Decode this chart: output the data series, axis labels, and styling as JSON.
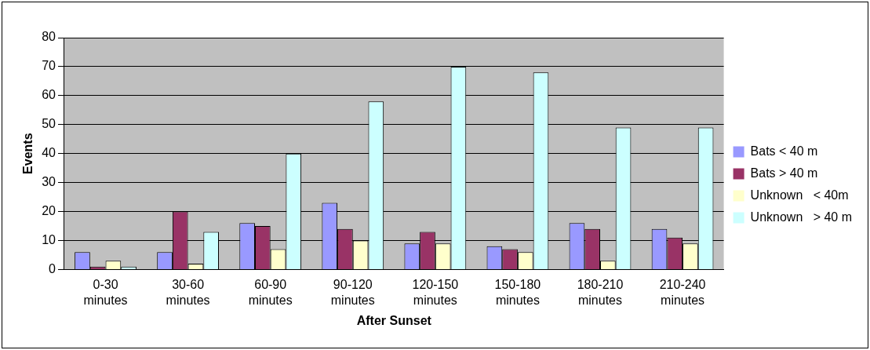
{
  "chart_data": {
    "type": "bar",
    "xlabel": "After Sunset",
    "ylabel": "Events",
    "categories": [
      "0-30 minutes",
      "30-60 minutes",
      "60-90 minutes",
      "90-120 minutes",
      "120-150 minutes",
      "150-180 minutes",
      "180-210 minutes",
      "210-240 minutes"
    ],
    "series": [
      {
        "name": "Bats < 40 m",
        "color": "#9999ff",
        "values": [
          6,
          6,
          16,
          23,
          9,
          8,
          16,
          14
        ]
      },
      {
        "name": "Bats > 40 m",
        "color": "#993366",
        "values": [
          1,
          20,
          15,
          14,
          13,
          7,
          14,
          11
        ]
      },
      {
        "name": "Unknown   < 40m",
        "color": "#ffffcc",
        "values": [
          3,
          2,
          7,
          10,
          9,
          6,
          3,
          9
        ]
      },
      {
        "name": "Unknown   > 40 m",
        "color": "#ccffff",
        "values": [
          1,
          13,
          40,
          58,
          70,
          68,
          49,
          49
        ]
      }
    ],
    "ylim": [
      0,
      80
    ],
    "yticks": [
      0,
      10,
      20,
      30,
      40,
      50,
      60,
      70,
      80
    ],
    "grid": "y",
    "legend": "right"
  }
}
